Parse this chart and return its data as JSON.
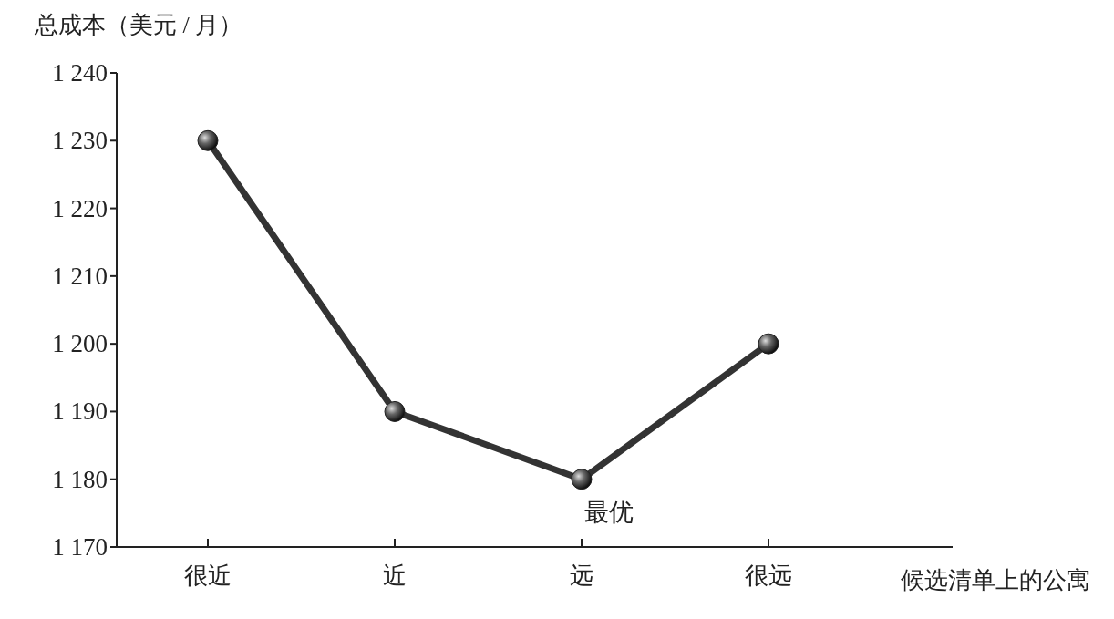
{
  "chart_data": {
    "type": "line",
    "ylabel": "总成本（美元 / 月）",
    "xlabel": "候选清单上的公寓",
    "categories": [
      "很近",
      "近",
      "远",
      "很远"
    ],
    "series": [
      {
        "color": "#333333",
        "values": [
          1230,
          1190,
          1180,
          1200
        ]
      }
    ],
    "ylim": [
      1170,
      1240
    ],
    "yticks": [
      {
        "value": 1170,
        "label": "1 170"
      },
      {
        "value": 1180,
        "label": "1 180"
      },
      {
        "value": 1190,
        "label": "1 190"
      },
      {
        "value": 1200,
        "label": "1 200"
      },
      {
        "value": 1210,
        "label": "1 210"
      },
      {
        "value": 1220,
        "label": "1 220"
      },
      {
        "value": 1230,
        "label": "1 230"
      },
      {
        "value": 1240,
        "label": "1 240"
      }
    ],
    "marker": "circle",
    "line_style": "solid",
    "grid": false,
    "annotations": [
      {
        "text": "最优",
        "x": "远",
        "y": 1180
      }
    ]
  }
}
